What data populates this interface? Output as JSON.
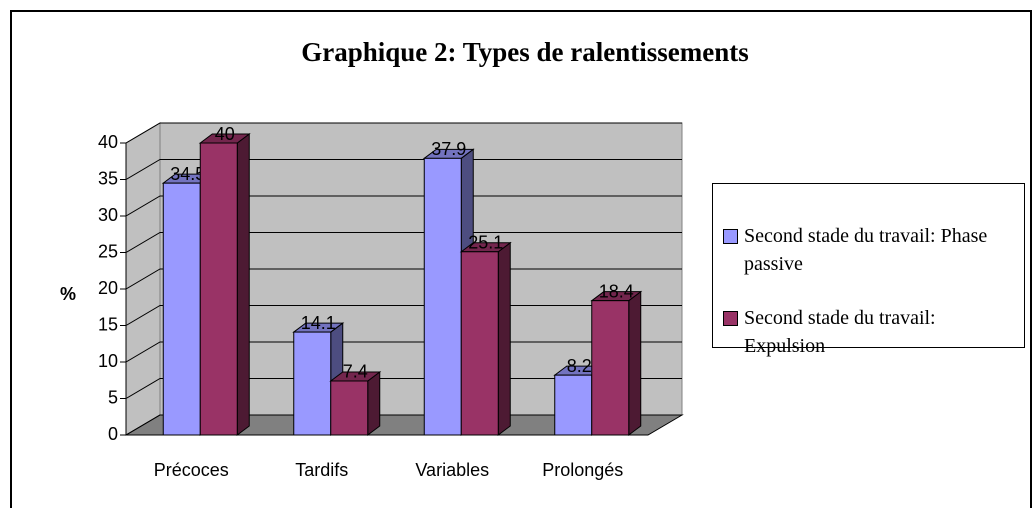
{
  "chart_data": {
    "type": "bar3d",
    "title": "Graphique 2: Types de ralentissements",
    "y_label": "%",
    "categories": [
      "Précoces",
      "Tardifs",
      "Variables",
      "Prolongés"
    ],
    "series": [
      {
        "name": "Second stade du travail: Phase passive",
        "color": "#9999ff",
        "values": [
          34.5,
          14.1,
          37.9,
          8.2
        ]
      },
      {
        "name": "Second stade du travail: Expulsion",
        "color": "#993366",
        "values": [
          40,
          7.4,
          25.1,
          18.4
        ]
      }
    ],
    "ylim": [
      0,
      40
    ],
    "yticks": [
      0,
      5,
      10,
      15,
      20,
      25,
      30,
      35,
      40
    ],
    "grid": true
  }
}
